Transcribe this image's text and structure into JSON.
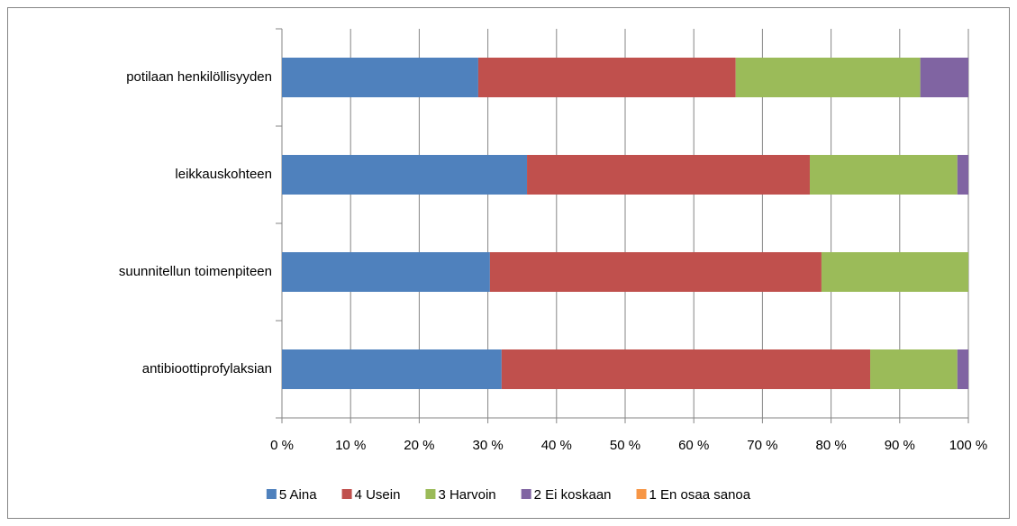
{
  "chart_data": {
    "type": "stacked-bar-horizontal",
    "categories": [
      "potilaan henkilöllisyyden",
      "leikkauskohteen",
      "suunnitellun toimenpiteen",
      "antibioottiprofylaksian"
    ],
    "series": [
      {
        "name": "5 Aina",
        "color": "#4f81bd",
        "values": [
          28.6,
          35.7,
          30.3,
          32.0
        ]
      },
      {
        "name": "4 Usein",
        "color": "#c0504d",
        "values": [
          37.5,
          41.2,
          48.3,
          53.7
        ]
      },
      {
        "name": "3 Harvoin",
        "color": "#9bbb59",
        "values": [
          26.9,
          21.5,
          21.4,
          12.7
        ]
      },
      {
        "name": "2 Ei koskaan",
        "color": "#8064a2",
        "values": [
          7.0,
          1.6,
          0,
          1.6
        ]
      },
      {
        "name": "1 En osaa sanoa",
        "color": "#f79646",
        "values": [
          0,
          0,
          0,
          0
        ]
      }
    ],
    "xlim": [
      0,
      100
    ],
    "xticks": [
      {
        "value": 0,
        "label": "0 %"
      },
      {
        "value": 10,
        "label": "10 %"
      },
      {
        "value": 20,
        "label": "20 %"
      },
      {
        "value": 30,
        "label": "30 %"
      },
      {
        "value": 40,
        "label": "40 %"
      },
      {
        "value": 50,
        "label": "50 %"
      },
      {
        "value": 60,
        "label": "60 %"
      },
      {
        "value": 70,
        "label": "70 %"
      },
      {
        "value": 80,
        "label": "80 %"
      },
      {
        "value": 90,
        "label": "90 %"
      },
      {
        "value": 100,
        "label": "100 %"
      }
    ],
    "grid": true,
    "legend": "bottom"
  }
}
